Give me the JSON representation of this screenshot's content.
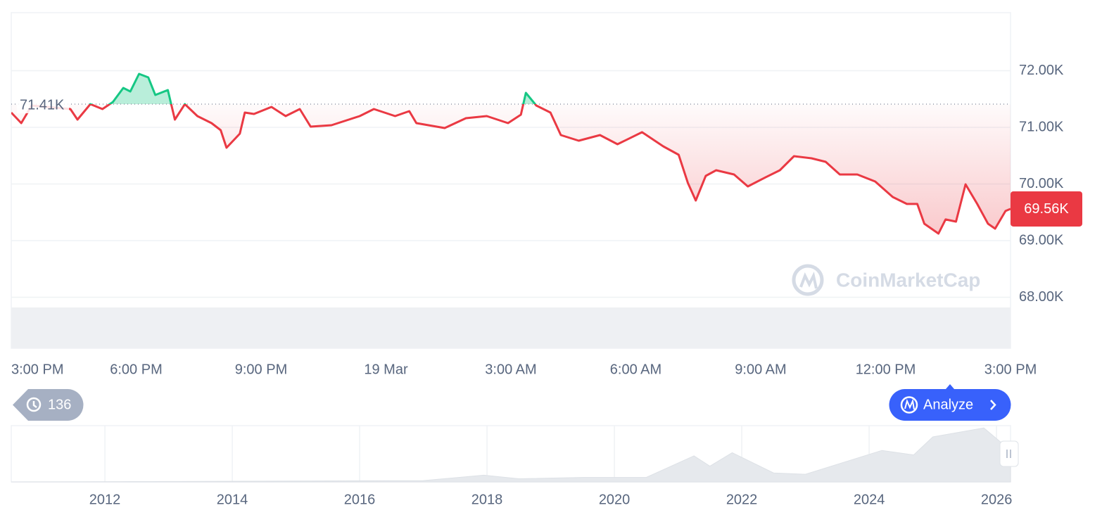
{
  "chart_data": [
    {
      "type": "line",
      "x": [
        0,
        0.24,
        0.49,
        1.42,
        1.59,
        1.9,
        2.19,
        2.44,
        2.69,
        2.86,
        3.07,
        3.29,
        3.46,
        3.76,
        3.93,
        4.17,
        4.47,
        4.81,
        5.03,
        5.17,
        5.49,
        5.61,
        5.83,
        6.25,
        6.59,
        6.93,
        7.19,
        7.69,
        8.37,
        8.71,
        9.22,
        9.56,
        9.73,
        10.41,
        10.92,
        11.42,
        11.93,
        12.24,
        12.36,
        12.61,
        12.95,
        13.2,
        13.63,
        14.14,
        14.56,
        15.15,
        15.66,
        16.03,
        16.25,
        16.44,
        16.68,
        16.93,
        17.36,
        17.69,
        18.12,
        18.46,
        18.8,
        19.22,
        19.56,
        19.9,
        20.32,
        20.75,
        21.17,
        21.51,
        21.76,
        21.93,
        22.27,
        22.44,
        22.69,
        22.92,
        23.2,
        23.46,
        23.63,
        23.88,
        24
      ],
      "values": [
        71261,
        71075,
        71385,
        71323,
        71137,
        71410,
        71323,
        71447,
        71696,
        71634,
        71944,
        71882,
        71572,
        71659,
        71137,
        71410,
        71199,
        71075,
        70951,
        70640,
        70889,
        71261,
        71236,
        71360,
        71199,
        71323,
        71013,
        71038,
        71199,
        71323,
        71199,
        71286,
        71075,
        70988,
        71162,
        71199,
        71075,
        71224,
        71609,
        71385,
        71261,
        70864,
        70764,
        70864,
        70702,
        70914,
        70665,
        70516,
        70019,
        69709,
        70143,
        70243,
        70168,
        69957,
        70119,
        70243,
        70491,
        70454,
        70392,
        70168,
        70168,
        70044,
        69771,
        69647,
        69647,
        69299,
        69125,
        69374,
        69336,
        69994,
        69647,
        69299,
        69212,
        69523,
        69560
      ],
      "xlim": [
        0,
        24
      ],
      "xticks": [
        {
          "value": 0,
          "label": "3:00 PM"
        },
        {
          "value": 3,
          "label": "6:00 PM"
        },
        {
          "value": 6,
          "label": "9:00 PM"
        },
        {
          "value": 9,
          "label": "19 Mar"
        },
        {
          "value": 12,
          "label": "3:00 AM"
        },
        {
          "value": 15,
          "label": "6:00 AM"
        },
        {
          "value": 18,
          "label": "9:00 AM"
        },
        {
          "value": 21,
          "label": "12:00 PM"
        },
        {
          "value": 24,
          "label": "3:00 PM"
        }
      ],
      "ylim": [
        67100,
        73000
      ],
      "yticks": [
        {
          "value": 72000,
          "label": "72.00K"
        },
        {
          "value": 71000,
          "label": "71.00K"
        },
        {
          "value": 70000,
          "label": "70.00K"
        },
        {
          "value": 69000,
          "label": "69.00K"
        },
        {
          "value": 68000,
          "label": "68.00K"
        }
      ],
      "grid": true,
      "reference_line": {
        "value": 71410,
        "label": "71.41K"
      },
      "current_price": {
        "value": 69560,
        "label": "69.56K"
      },
      "color_up": "#16c784",
      "color_down": "#ea3943"
    },
    {
      "type": "area",
      "x": [
        2010.53,
        2013,
        2017,
        2017.95,
        2018.5,
        2019.5,
        2020.5,
        2021.25,
        2021.5,
        2021.85,
        2022.5,
        2023,
        2024.2,
        2024.7,
        2025,
        2025.8,
        2026.22
      ],
      "values": [
        0,
        1000,
        3000,
        15000,
        7000,
        10000,
        10000,
        58000,
        35000,
        65000,
        20000,
        17000,
        70000,
        60000,
        100000,
        120000,
        70000
      ],
      "xlim": [
        2010.53,
        2026.22
      ],
      "ylim": [
        0,
        125000
      ],
      "xticks": [
        2012,
        2014,
        2016,
        2018,
        2020,
        2022,
        2024,
        2026
      ],
      "color": "#e6e9ed"
    }
  ],
  "ui": {
    "history_count": 136,
    "analyze_button": "Analyze",
    "watermark": "CoinMarketCap"
  }
}
